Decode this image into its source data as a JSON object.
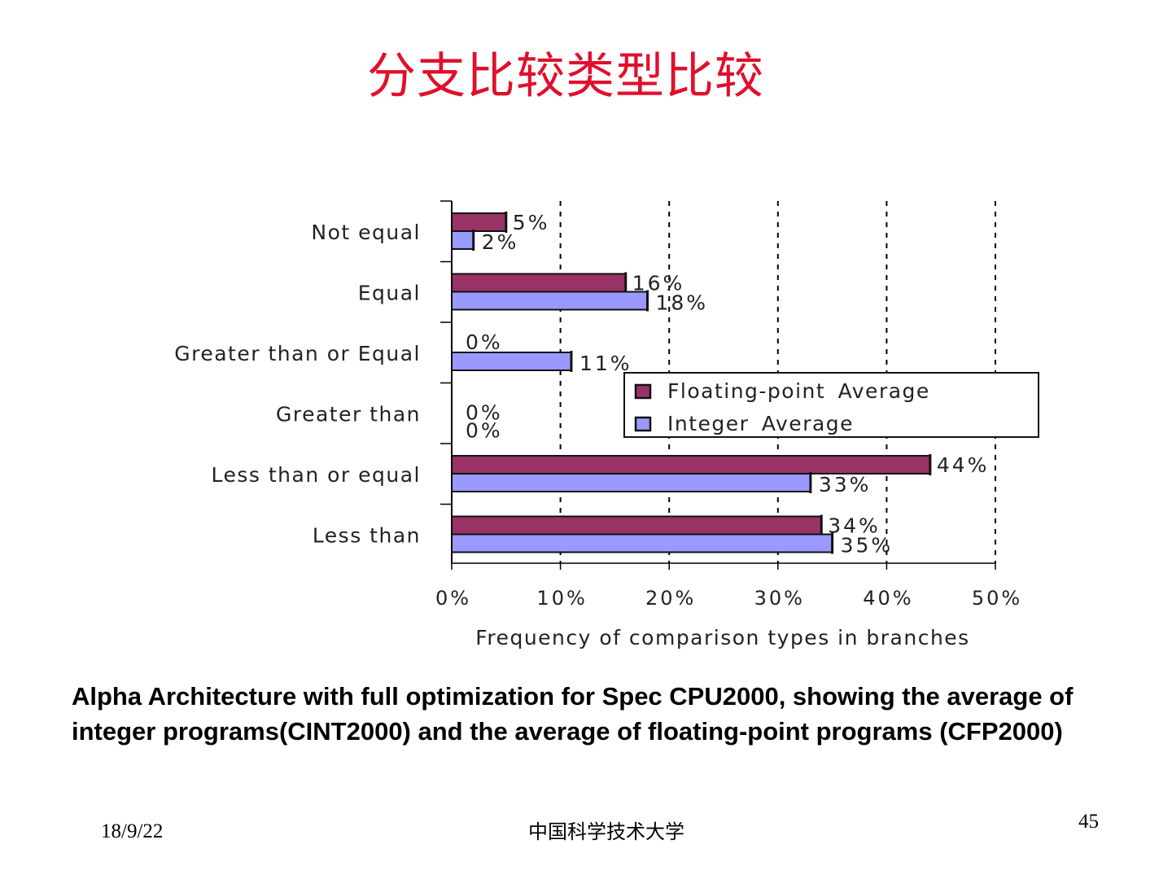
{
  "slide": {
    "title": "分支比较类型比较",
    "caption": "Alpha Architecture with full optimization for Spec CPU2000, showing the average of integer programs(CINT2000) and the average of floating-point programs (CFP2000)",
    "footer_date": "18/9/22",
    "footer_org": "中国科学技术大学",
    "page_number": "45"
  },
  "chart_data": {
    "type": "bar",
    "orientation": "horizontal",
    "title": "",
    "xlabel": "Frequency of comparison types in branches",
    "ylabel": "",
    "xlim": [
      0,
      50
    ],
    "x_ticks": [
      "0%",
      "10%",
      "20%",
      "30%",
      "40%",
      "50%"
    ],
    "grid": "vertical dotted",
    "legend_position": "right-middle",
    "categories": [
      "Not equal",
      "Equal",
      "Greater than or Equal",
      "Greater than",
      "Less than or equal",
      "Less than"
    ],
    "series": [
      {
        "name": "Floating-point Average",
        "color": "#993366",
        "values": [
          5,
          16,
          0,
          0,
          44,
          34
        ],
        "labels": [
          "5%",
          "16%",
          "0%",
          "0%",
          "44%",
          "34%"
        ]
      },
      {
        "name": "Integer Average",
        "color": "#9999ff",
        "values": [
          2,
          18,
          11,
          0,
          33,
          35
        ],
        "labels": [
          "2%",
          "18%",
          "11%",
          "0%",
          "33%",
          "35%"
        ]
      }
    ]
  }
}
